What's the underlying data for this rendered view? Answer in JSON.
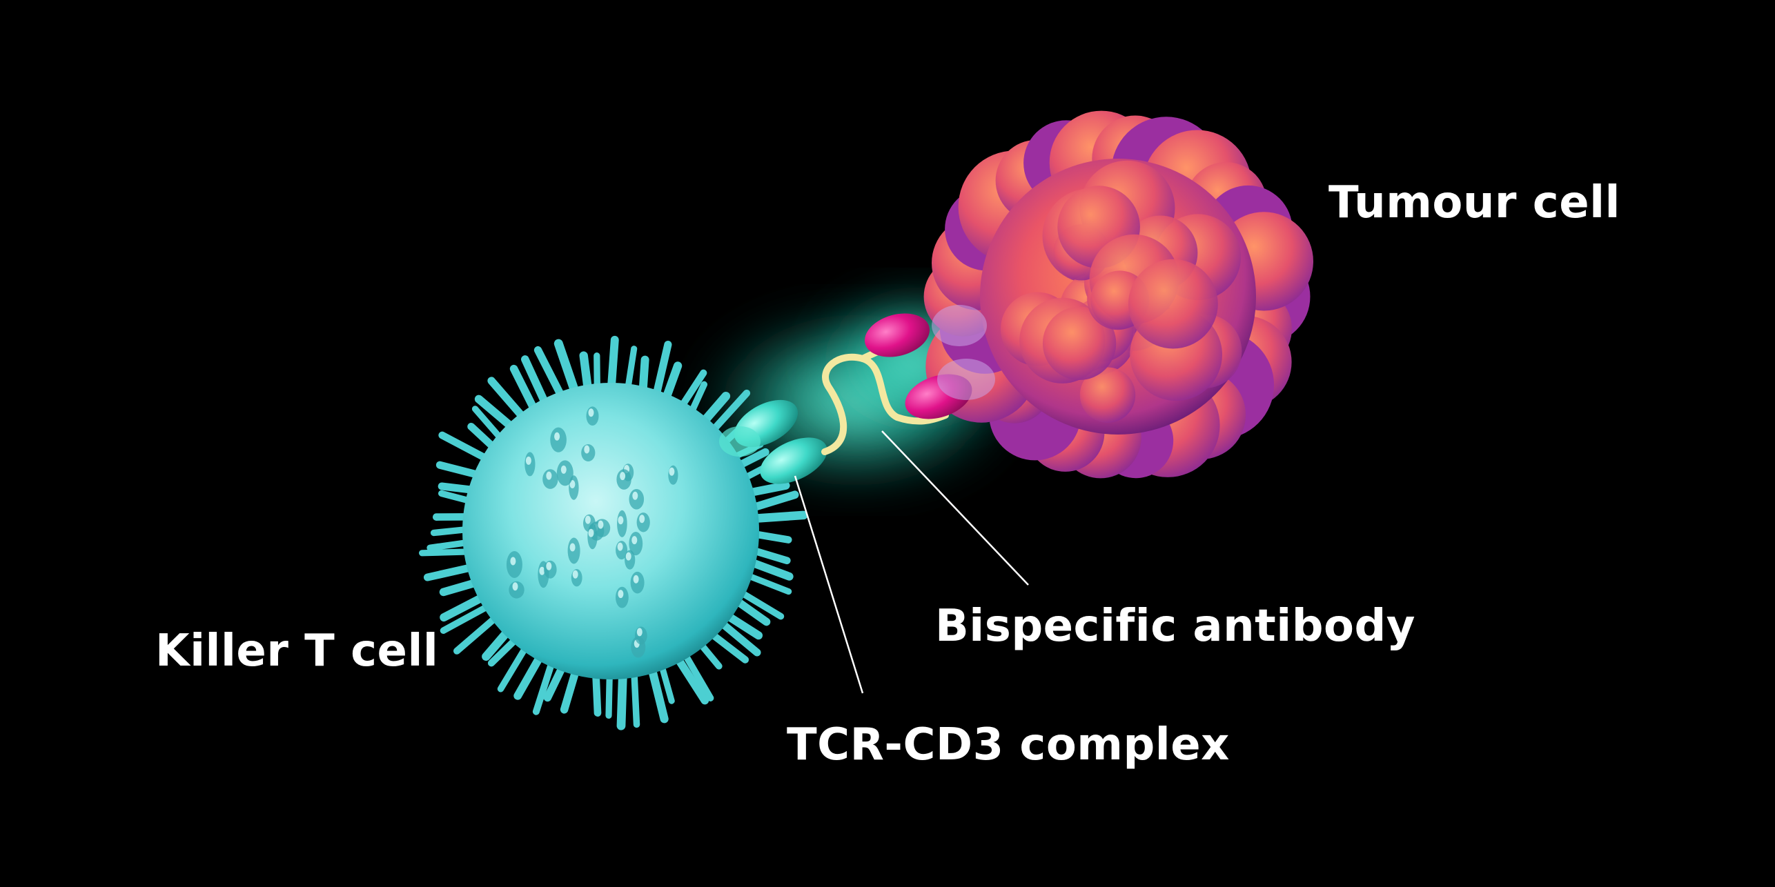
{
  "labels": {
    "tumour_cell": "Tumour cell",
    "bispecific_antibody": "Bispecific antibody",
    "killer_t_cell": "Killer T cell",
    "tcr_cd3_complex": "TCR-CD3 complex"
  },
  "colors": {
    "background": "#000000",
    "t_cell": "#5fd6d6",
    "tumour_cell": "#e2566a",
    "tumour_shadow": "#8a2a9a",
    "antibody_arm": "#e0128a",
    "antibody_linker": "#f3e8a0",
    "tcr_receptor": "#38d8c8",
    "glow": "#3cf5d8",
    "leader_line": "#ffffff"
  }
}
